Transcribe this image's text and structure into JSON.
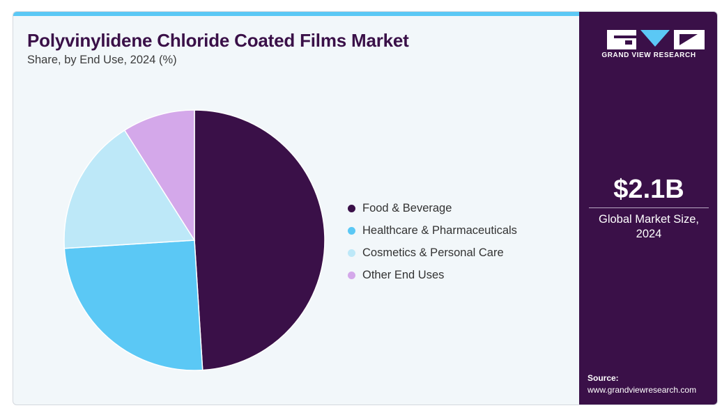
{
  "header": {
    "title": "Polyvinylidene Chloride Coated Films Market",
    "subtitle": "Share, by End Use, 2024 (%)"
  },
  "chart_data": {
    "type": "pie",
    "title": "Polyvinylidene Chloride Coated Films Market",
    "subtitle": "Share, by End Use, 2024 (%)",
    "categories": [
      "Food & Beverage",
      "Healthcare & Pharmaceuticals",
      "Cosmetics & Personal Care",
      "Other End Uses"
    ],
    "values": [
      49,
      25,
      17,
      9
    ],
    "colors": [
      "#3a1048",
      "#5bc8f5",
      "#bde8f8",
      "#d4a8ea"
    ],
    "legend_position": "right",
    "start_angle": "12 o'clock",
    "direction": "clockwise"
  },
  "sidebar": {
    "brand": "GRAND VIEW RESEARCH",
    "market_size": "$2.1B",
    "market_size_label": "Global Market Size, 2024",
    "source_label": "Source:",
    "source_url": "www.grandviewresearch.com"
  },
  "colors": {
    "brand_purple": "#3a1048",
    "accent_blue": "#5bc8f5",
    "panel_bg": "#f2f7fa"
  }
}
